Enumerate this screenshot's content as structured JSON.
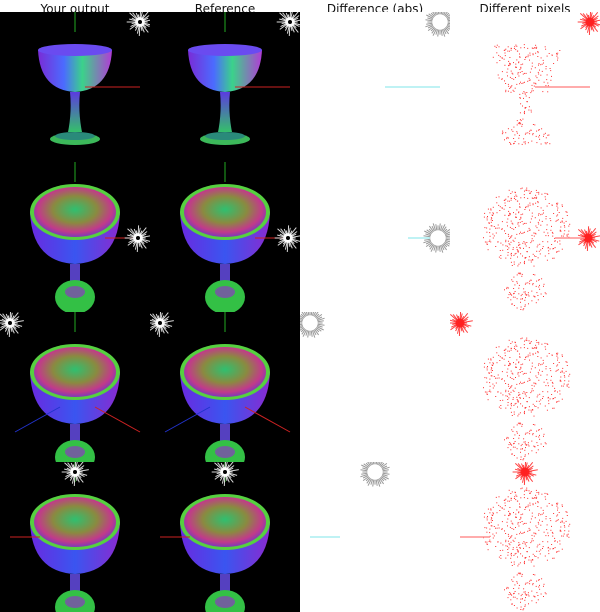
{
  "columns": [
    {
      "label": "Your output"
    },
    {
      "label": "Reference"
    },
    {
      "label": "Difference (abs)"
    },
    {
      "label": "Different pixels"
    }
  ],
  "rows": [
    {
      "view": "side",
      "star": "top-right",
      "axis": "red-right"
    },
    {
      "view": "tilted",
      "star": "right",
      "axis": "red-right"
    },
    {
      "view": "top",
      "star": "left",
      "axis": "diagonal"
    },
    {
      "view": "top",
      "star": "top-center",
      "axis": "red-left"
    }
  ],
  "colors": {
    "background_render": "#000000",
    "background_diff": "#ffffff",
    "diff_pixel": "#ff2020",
    "axis_red": "#cc2222",
    "axis_green": "#22aa22",
    "axis_blue": "#2233cc"
  }
}
